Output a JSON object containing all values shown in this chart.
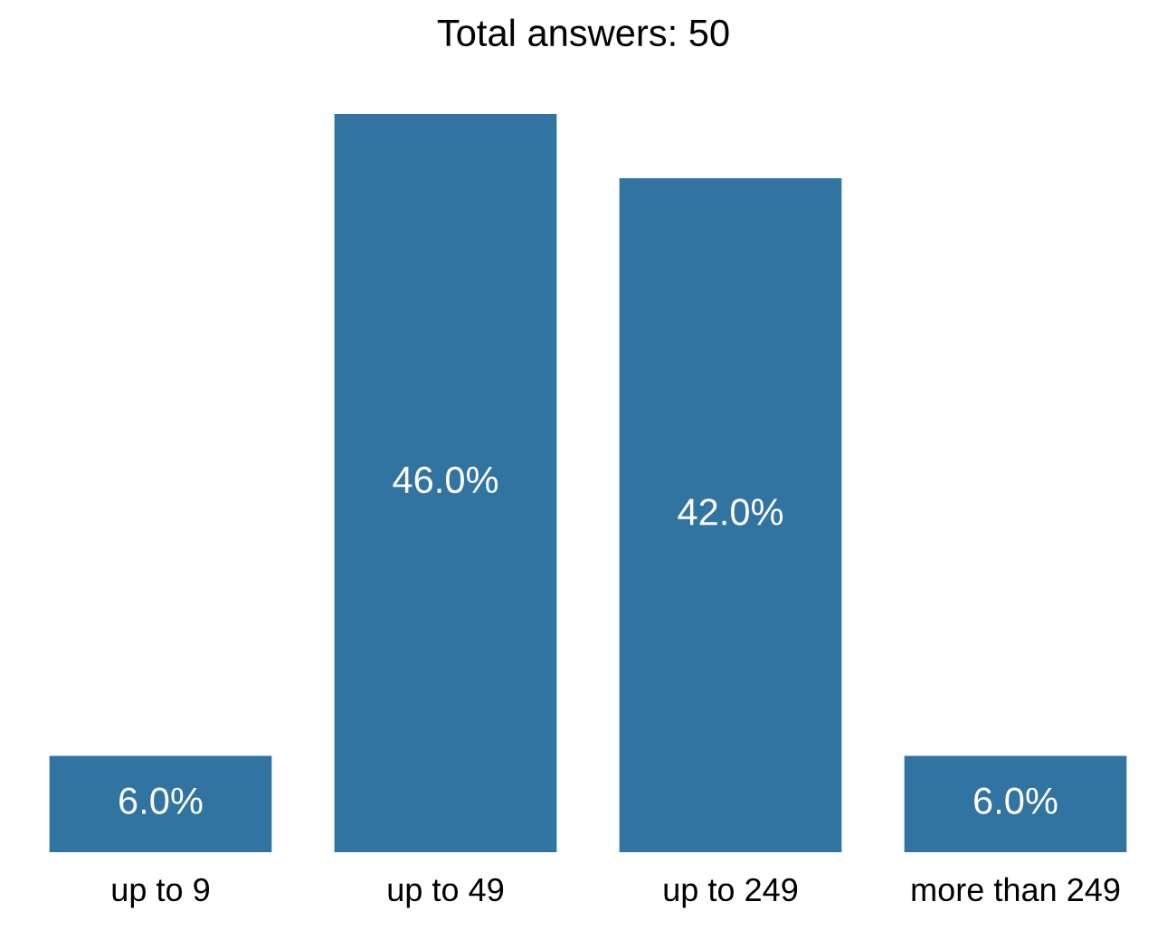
{
  "chart_data": {
    "type": "bar",
    "title": "Total answers: 50",
    "categories": [
      "up to 9",
      "up to 49",
      "up to 249",
      "more than 249"
    ],
    "values": [
      6,
      46,
      42,
      6
    ],
    "value_labels": [
      "6.0%",
      "46.0%",
      "42.0%",
      "6.0%"
    ],
    "color": "#3274a1",
    "grid": false
  }
}
